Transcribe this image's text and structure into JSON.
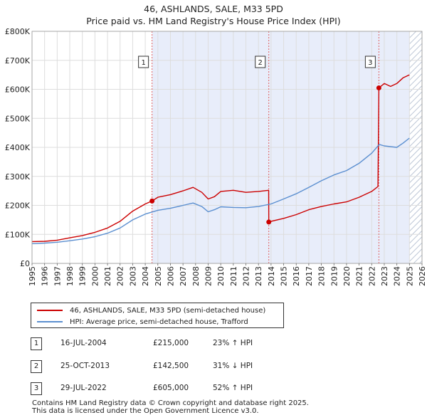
{
  "title_line1": "46, ASHLANDS, SALE, M33 5PD",
  "title_line2": "Price paid vs. HM Land Registry's House Price Index (HPI)",
  "colors": {
    "property": "#cc0000",
    "hpi": "#5b8fd0",
    "shade": "#e8edfa",
    "hatch": "#bcc6d6"
  },
  "chart_data": {
    "type": "line",
    "title": "Price paid vs. HM Land Registry's House Price Index (HPI)",
    "xlabel": "",
    "ylabel": "",
    "xlim": [
      1995,
      2026
    ],
    "ylim": [
      0,
      800000
    ],
    "y_ticks": [
      {
        "value": 0,
        "label": "£0"
      },
      {
        "value": 100000,
        "label": "£100K"
      },
      {
        "value": 200000,
        "label": "£200K"
      },
      {
        "value": 300000,
        "label": "£300K"
      },
      {
        "value": 400000,
        "label": "£400K"
      },
      {
        "value": 500000,
        "label": "£500K"
      },
      {
        "value": 600000,
        "label": "£600K"
      },
      {
        "value": 700000,
        "label": "£700K"
      },
      {
        "value": 800000,
        "label": "£800K"
      }
    ],
    "x_ticks": [
      "1995",
      "1996",
      "1997",
      "1998",
      "1999",
      "2000",
      "2001",
      "2002",
      "2003",
      "2004",
      "2005",
      "2006",
      "2007",
      "2008",
      "2009",
      "2010",
      "2011",
      "2012",
      "2013",
      "2014",
      "2015",
      "2016",
      "2017",
      "2018",
      "2019",
      "2020",
      "2021",
      "2022",
      "2023",
      "2024",
      "2025",
      "2026"
    ],
    "shaded_region": {
      "from": 2004.54,
      "to": 2025.0
    },
    "future_hatched_from": 2025.0,
    "series": [
      {
        "name": "46, ASHLANDS, SALE, M33 5PD (semi-detached house)",
        "color": "#cc0000",
        "points": [
          [
            1995,
            75000
          ],
          [
            1996,
            76000
          ],
          [
            1997,
            80000
          ],
          [
            1998,
            88000
          ],
          [
            1999,
            96000
          ],
          [
            2000,
            107000
          ],
          [
            2001,
            122000
          ],
          [
            2002,
            145000
          ],
          [
            2003,
            180000
          ],
          [
            2004,
            205000
          ],
          [
            2004.54,
            215000
          ],
          [
            2005,
            228000
          ],
          [
            2006,
            237000
          ],
          [
            2007,
            250000
          ],
          [
            2007.8,
            262000
          ],
          [
            2008.5,
            245000
          ],
          [
            2009,
            222000
          ],
          [
            2009.5,
            230000
          ],
          [
            2010,
            248000
          ],
          [
            2011,
            252000
          ],
          [
            2012,
            245000
          ],
          [
            2013,
            248000
          ],
          [
            2013.81,
            252000
          ],
          [
            2013.82,
            142500
          ],
          [
            2014,
            145000
          ],
          [
            2015,
            155000
          ],
          [
            2016,
            168000
          ],
          [
            2017,
            185000
          ],
          [
            2018,
            196000
          ],
          [
            2019,
            205000
          ],
          [
            2020,
            212000
          ],
          [
            2021,
            228000
          ],
          [
            2022,
            248000
          ],
          [
            2022.5,
            265000
          ],
          [
            2022.57,
            605000
          ],
          [
            2023,
            620000
          ],
          [
            2023.5,
            610000
          ],
          [
            2024,
            620000
          ],
          [
            2024.5,
            640000
          ],
          [
            2025,
            650000
          ]
        ]
      },
      {
        "name": "HPI: Average price, semi-detached house, Trafford",
        "color": "#5b8fd0",
        "points": [
          [
            1995,
            68000
          ],
          [
            1996,
            70000
          ],
          [
            1997,
            73000
          ],
          [
            1998,
            78000
          ],
          [
            1999,
            84000
          ],
          [
            2000,
            92000
          ],
          [
            2001,
            104000
          ],
          [
            2002,
            122000
          ],
          [
            2003,
            150000
          ],
          [
            2004,
            170000
          ],
          [
            2005,
            183000
          ],
          [
            2006,
            190000
          ],
          [
            2007,
            200000
          ],
          [
            2007.8,
            208000
          ],
          [
            2008.5,
            196000
          ],
          [
            2009,
            178000
          ],
          [
            2009.5,
            185000
          ],
          [
            2010,
            195000
          ],
          [
            2011,
            193000
          ],
          [
            2012,
            192000
          ],
          [
            2013,
            196000
          ],
          [
            2014,
            205000
          ],
          [
            2015,
            222000
          ],
          [
            2016,
            240000
          ],
          [
            2017,
            262000
          ],
          [
            2018,
            285000
          ],
          [
            2019,
            305000
          ],
          [
            2020,
            320000
          ],
          [
            2021,
            345000
          ],
          [
            2022,
            380000
          ],
          [
            2022.6,
            410000
          ],
          [
            2023,
            405000
          ],
          [
            2024,
            400000
          ],
          [
            2024.5,
            415000
          ],
          [
            2025,
            432000
          ]
        ]
      }
    ],
    "sales": [
      {
        "id": "1",
        "x": 2004.54,
        "y": 215000
      },
      {
        "id": "2",
        "x": 2013.82,
        "y": 142500
      },
      {
        "id": "3",
        "x": 2022.57,
        "y": 605000
      }
    ]
  },
  "legend": {
    "property_label": "46, ASHLANDS, SALE, M33 5PD (semi-detached house)",
    "hpi_label": "HPI: Average price, semi-detached house, Trafford"
  },
  "transactions": [
    {
      "id": "1",
      "date": "16-JUL-2004",
      "price": "£215,000",
      "hpi": "23% ↑ HPI"
    },
    {
      "id": "2",
      "date": "25-OCT-2013",
      "price": "£142,500",
      "hpi": "31% ↓ HPI"
    },
    {
      "id": "3",
      "date": "29-JUL-2022",
      "price": "£605,000",
      "hpi": "52% ↑ HPI"
    }
  ],
  "footer": {
    "line1": "Contains HM Land Registry data © Crown copyright and database right 2025.",
    "line2": "This data is licensed under the Open Government Licence v3.0."
  }
}
